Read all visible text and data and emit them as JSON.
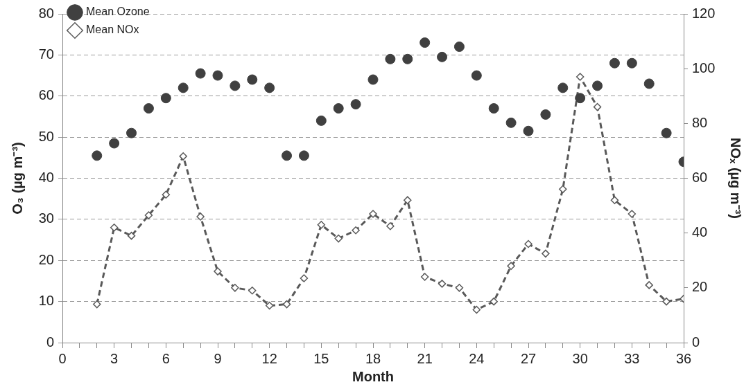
{
  "chart_data": {
    "type": "scatter",
    "xlabel": "Month",
    "ylabel": "O₃ (µg m⁻³)",
    "y2label": "NOₓ (µg m⁻³)",
    "xlim": [
      0,
      36
    ],
    "xticks": [
      0,
      {
        "value": 1,
        "label": null
      },
      {
        "value": 2,
        "label": null
      },
      3,
      {
        "value": 4,
        "label": null
      },
      {
        "value": 5,
        "label": null
      },
      6,
      {
        "value": 7,
        "label": null
      },
      {
        "value": 8,
        "label": null
      },
      9,
      {
        "value": 10,
        "label": null
      },
      {
        "value": 11,
        "label": null
      },
      12,
      {
        "value": 13,
        "label": null
      },
      {
        "value": 14,
        "label": null
      },
      15,
      {
        "value": 16,
        "label": null
      },
      {
        "value": 17,
        "label": null
      },
      18,
      {
        "value": 19,
        "label": null
      },
      {
        "value": 20,
        "label": null
      },
      21,
      {
        "value": 22,
        "label": null
      },
      {
        "value": 23,
        "label": null
      },
      24,
      {
        "value": 25,
        "label": null
      },
      {
        "value": 26,
        "label": null
      },
      27,
      {
        "value": 28,
        "label": null
      },
      {
        "value": 29,
        "label": null
      },
      30,
      {
        "value": 31,
        "label": null
      },
      {
        "value": 32,
        "label": null
      },
      33,
      {
        "value": 34,
        "label": null
      },
      {
        "value": 35,
        "label": null
      },
      36
    ],
    "ylim": [
      0,
      80
    ],
    "yticks": [
      0,
      10,
      20,
      30,
      40,
      50,
      60,
      70,
      80
    ],
    "y2lim": [
      0,
      120
    ],
    "y2ticks": [
      0,
      20,
      40,
      60,
      80,
      100,
      120
    ],
    "grid": "y",
    "legend": "top left",
    "x": [
      2,
      3,
      4,
      5,
      6,
      7,
      8,
      9,
      10,
      11,
      12,
      13,
      14,
      15,
      16,
      17,
      18,
      19,
      20,
      21,
      22,
      23,
      24,
      25,
      26,
      27,
      28,
      29,
      30,
      31,
      32,
      33,
      34,
      35,
      36
    ],
    "series": [
      {
        "name": "Mean Ozone",
        "marker": "circle",
        "color": "#404040",
        "values": [
          45.5,
          48.5,
          51,
          57,
          59.5,
          62,
          65.5,
          65,
          62.5,
          64,
          62,
          45.5,
          45.5,
          54,
          57,
          58,
          64,
          69,
          69,
          73,
          69.5,
          72,
          65,
          57,
          53.5,
          51.5,
          55.5,
          62,
          59.5,
          62.5,
          68,
          68,
          63,
          51,
          44
        ]
      },
      {
        "name": "Mean NOx",
        "type": "line",
        "axis": "y2",
        "marker": "diamond",
        "line_style": "dashed",
        "color": "#595959",
        "values": [
          14,
          42,
          39,
          46.5,
          54,
          68,
          46,
          26,
          20,
          19,
          13.5,
          14,
          23.5,
          43,
          38,
          41,
          47,
          42.5,
          52,
          24,
          21.5,
          20,
          12,
          15,
          28,
          36,
          32.5,
          56,
          97,
          86,
          52,
          47,
          21,
          15,
          16
        ]
      }
    ]
  }
}
